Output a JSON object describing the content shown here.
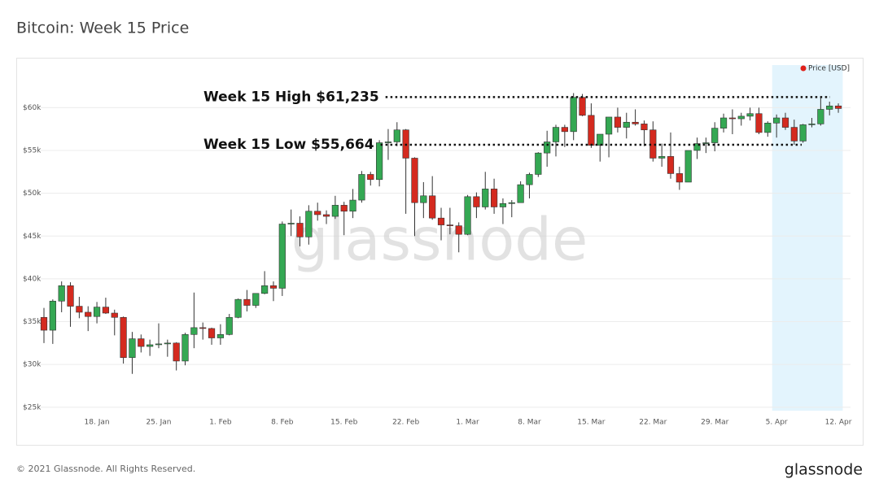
{
  "chart_data": {
    "type": "candlestick",
    "title": "Bitcoin: Week 15 Price",
    "watermark": "glassnode",
    "footer": "© 2021 Glassnode. All Rights Reserved.",
    "logo": "glassnode",
    "legend": "top-right",
    "grid": true,
    "categories": [
      null,
      null,
      null,
      null,
      null,
      null,
      "18. Jan",
      null,
      null,
      null,
      null,
      null,
      null,
      "25. Jan",
      null,
      null,
      null,
      null,
      null,
      null,
      "1. Feb",
      null,
      null,
      null,
      null,
      null,
      null,
      "8. Feb",
      null,
      null,
      null,
      null,
      null,
      null,
      "15. Feb",
      null,
      null,
      null,
      null,
      null,
      null,
      "22. Feb",
      null,
      null,
      null,
      null,
      null,
      null,
      "1. Mar",
      null,
      null,
      null,
      null,
      null,
      null,
      "8. Mar",
      null,
      null,
      null,
      null,
      null,
      null,
      "15. Mar",
      null,
      null,
      null,
      null,
      null,
      null,
      "22. Mar",
      null,
      null,
      null,
      null,
      null,
      null,
      "29. Mar",
      null,
      null,
      null,
      null,
      null,
      null,
      "5. Apr",
      null,
      null,
      null,
      null,
      null,
      null,
      "12. Apr"
    ],
    "highlight": {
      "from": 83,
      "to": 90,
      "color": "#e3f4fd"
    },
    "series": [
      {
        "name": "Price [USD]",
        "color": "#e0211b",
        "up_color": "#34a853",
        "down_color": "#d42a1f",
        "open": [
          35500,
          34000,
          37400,
          39200,
          36800,
          36100,
          35600,
          36700,
          36000,
          35500,
          30800,
          33000,
          32100,
          32300,
          32400,
          32500,
          30400,
          33500,
          34300,
          34200,
          33100,
          33500,
          35500,
          37600,
          36900,
          38300,
          39200,
          38900,
          46400,
          46500,
          44900,
          47900,
          47500,
          47300,
          48600,
          47900,
          49200,
          52200,
          51600,
          55900,
          56000,
          57400,
          54100,
          48900,
          49700,
          47100,
          46300,
          46200,
          45200,
          49600,
          48400,
          50500,
          48400,
          48800,
          48900,
          51000,
          52200,
          54700,
          56000,
          57700,
          57200,
          61200,
          59100,
          55600,
          56900,
          58900,
          57700,
          58300,
          58100,
          57400,
          54100,
          54300,
          52300,
          51300,
          55000,
          55800,
          55900,
          57600,
          58800,
          58700,
          59000,
          59300,
          57100,
          58200,
          58800,
          57700,
          56100,
          58000,
          58100,
          59800,
          60200
        ],
        "high": [
          36600,
          37600,
          39700,
          39600,
          37900,
          36800,
          37300,
          37800,
          36400,
          35600,
          33800,
          33500,
          32900,
          34800,
          32900,
          32600,
          33700,
          38400,
          34900,
          34300,
          34700,
          35900,
          37700,
          38700,
          38300,
          40900,
          39700,
          46700,
          48100,
          47300,
          48600,
          48900,
          48000,
          49700,
          49000,
          50500,
          52600,
          52500,
          56200,
          57500,
          58300,
          57500,
          54200,
          51300,
          52000,
          48300,
          48300,
          46600,
          49800,
          50100,
          52500,
          51700,
          49400,
          49200,
          51400,
          52400,
          54800,
          57300,
          58000,
          58000,
          61700,
          61600,
          60500,
          56900,
          58900,
          60000,
          59400,
          59800,
          58500,
          58400,
          55800,
          57100,
          53100,
          55000,
          56500,
          56500,
          58300,
          59300,
          59800,
          59400,
          60000,
          60000,
          58400,
          59200,
          59400,
          58600,
          58100,
          58800,
          61235,
          60700,
          60500
        ],
        "low": [
          32500,
          32400,
          36100,
          34400,
          35400,
          33900,
          34800,
          35900,
          33400,
          30100,
          28900,
          31400,
          31000,
          31900,
          30900,
          29300,
          29900,
          31900,
          32900,
          32300,
          32300,
          33400,
          35400,
          36200,
          36600,
          38200,
          37400,
          38000,
          45000,
          43800,
          44000,
          46800,
          46400,
          47000,
          45100,
          47100,
          48900,
          50900,
          50800,
          53900,
          55500,
          47600,
          45000,
          47100,
          46900,
          44500,
          45200,
          43100,
          45100,
          47100,
          48100,
          47600,
          46400,
          47200,
          48900,
          49400,
          51900,
          53100,
          54300,
          55400,
          56200,
          59000,
          55300,
          53700,
          54200,
          57100,
          56400,
          57900,
          55500,
          53700,
          53100,
          51700,
          50400,
          51300,
          54000,
          54700,
          54900,
          57100,
          56900,
          57900,
          58500,
          56900,
          56600,
          56500,
          57400,
          55664,
          55900,
          57700,
          57900,
          59100,
          59400
        ],
        "close": [
          34000,
          37400,
          39200,
          36800,
          36100,
          35600,
          36700,
          36000,
          35500,
          30800,
          33000,
          32100,
          32300,
          32400,
          32500,
          30400,
          33500,
          34300,
          34200,
          33100,
          33500,
          35500,
          37600,
          36900,
          38300,
          39200,
          38900,
          46400,
          46500,
          44900,
          47900,
          47500,
          47300,
          48600,
          47900,
          49200,
          52200,
          51600,
          55900,
          56000,
          57400,
          54100,
          48900,
          49700,
          47100,
          46300,
          46200,
          45200,
          49600,
          48400,
          50500,
          48400,
          48800,
          48900,
          51000,
          52200,
          54700,
          56000,
          57700,
          57200,
          61200,
          59100,
          55600,
          56900,
          58900,
          57700,
          58300,
          58100,
          57400,
          54100,
          54300,
          52300,
          51300,
          55000,
          55800,
          55900,
          57600,
          58800,
          58700,
          59000,
          59300,
          57100,
          58200,
          58800,
          57700,
          56100,
          58000,
          58100,
          59800,
          60200,
          59900
        ]
      }
    ],
    "annotations": [
      {
        "text": "Week 15 High $61,235",
        "value": 61235
      },
      {
        "text": "Week 15 Low $55,664",
        "value": 55664
      }
    ],
    "ylim": [
      24600,
      64500
    ],
    "yticks": [
      {
        "value": 25000,
        "label": "$25k"
      },
      {
        "value": 30000,
        "label": "$30k"
      },
      {
        "value": 35000,
        "label": "$35k"
      },
      {
        "value": 40000,
        "label": "$40k"
      },
      {
        "value": 45000,
        "label": "$45k"
      },
      {
        "value": 50000,
        "label": "$50k"
      },
      {
        "value": 55000,
        "label": "$55k"
      },
      {
        "value": 60000,
        "label": "$60k"
      }
    ]
  }
}
